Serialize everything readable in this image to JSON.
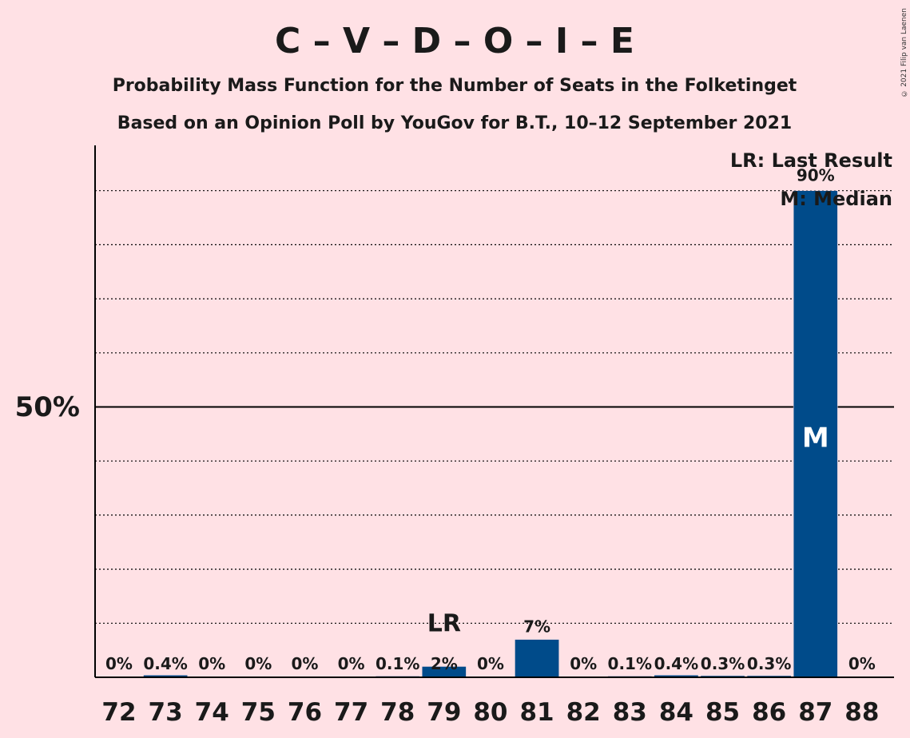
{
  "chart_data": {
    "type": "bar",
    "title": "C – V – D – O – I – E",
    "subtitle_lines": [
      "Probability Mass Function for the Number of Seats in the Folketinget",
      "Based on an Opinion Poll by YouGov for B.T., 10–12 September 2021"
    ],
    "categories": [
      "72",
      "73",
      "74",
      "75",
      "76",
      "77",
      "78",
      "79",
      "80",
      "81",
      "82",
      "83",
      "84",
      "85",
      "86",
      "87",
      "88"
    ],
    "values": [
      0,
      0.4,
      0,
      0,
      0,
      0,
      0.1,
      2,
      0,
      7,
      0,
      0.1,
      0.4,
      0.3,
      0.3,
      90,
      0
    ],
    "value_labels": [
      "0%",
      "0.4%",
      "0%",
      "0%",
      "0%",
      "0%",
      "0.1%",
      "2%",
      "0%",
      "7%",
      "0%",
      "0.1%",
      "0.4%",
      "0.3%",
      "0.3%",
      "90%",
      "0%"
    ],
    "ylim": [
      0,
      100
    ],
    "y_tick_label": "50%",
    "y_tick_value": 50,
    "gridlines": [
      10,
      20,
      30,
      40,
      60,
      70,
      80,
      90
    ],
    "bar_color": "#004b8a",
    "last_result": {
      "category": "79",
      "marker": "LR"
    },
    "median": {
      "category": "87",
      "marker": "M"
    },
    "legend": {
      "lines": [
        "LR: Last Result",
        "M: Median"
      ],
      "position": "top-right"
    }
  },
  "copyright": "© 2021 Filip van Laenen"
}
